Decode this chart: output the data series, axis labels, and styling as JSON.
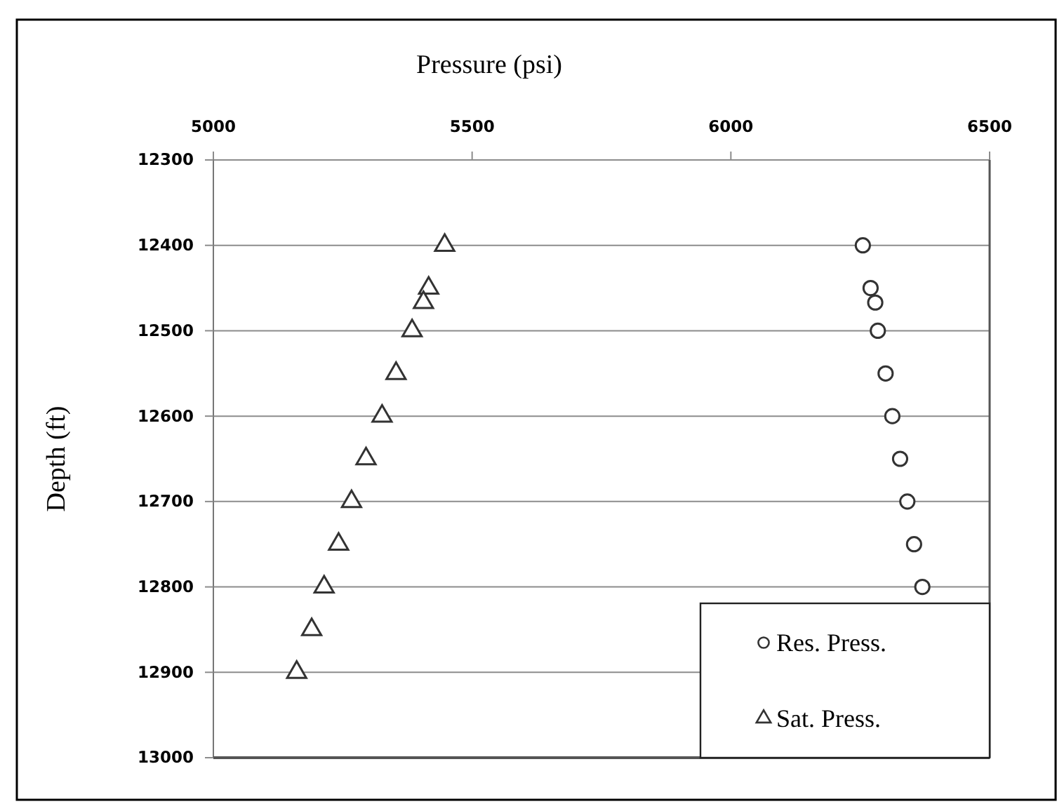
{
  "chart_data": {
    "type": "scatter",
    "xlabel": "Pressure (psi)",
    "ylabel": "Depth (ft)",
    "xlim": [
      5000,
      6500
    ],
    "xticks": [
      5000,
      5500,
      6000,
      6500
    ],
    "ylim": [
      13000,
      12300
    ],
    "yticks": [
      12300,
      12400,
      12500,
      12600,
      12700,
      12800,
      12900,
      13000
    ],
    "grid": "y",
    "legend": "bottom right",
    "series": [
      {
        "name": "Res. Press.",
        "color": "#333333",
        "marker": "circle",
        "x": [
          6255,
          6270,
          6279,
          6284,
          6299,
          6312,
          6327,
          6341,
          6354,
          6370
        ],
        "values": [
          12400,
          12450,
          12467,
          12500,
          12550,
          12600,
          12650,
          12700,
          12750,
          12800
        ]
      },
      {
        "name": "Sat. Press.",
        "color": "#333333",
        "marker": "triangle",
        "x": [
          5447,
          5416,
          5406,
          5384,
          5353,
          5326,
          5295,
          5267,
          5242,
          5214,
          5190,
          5161
        ],
        "values": [
          12400,
          12450,
          12467,
          12500,
          12550,
          12600,
          12650,
          12700,
          12750,
          12800,
          12850,
          12900
        ]
      }
    ]
  }
}
